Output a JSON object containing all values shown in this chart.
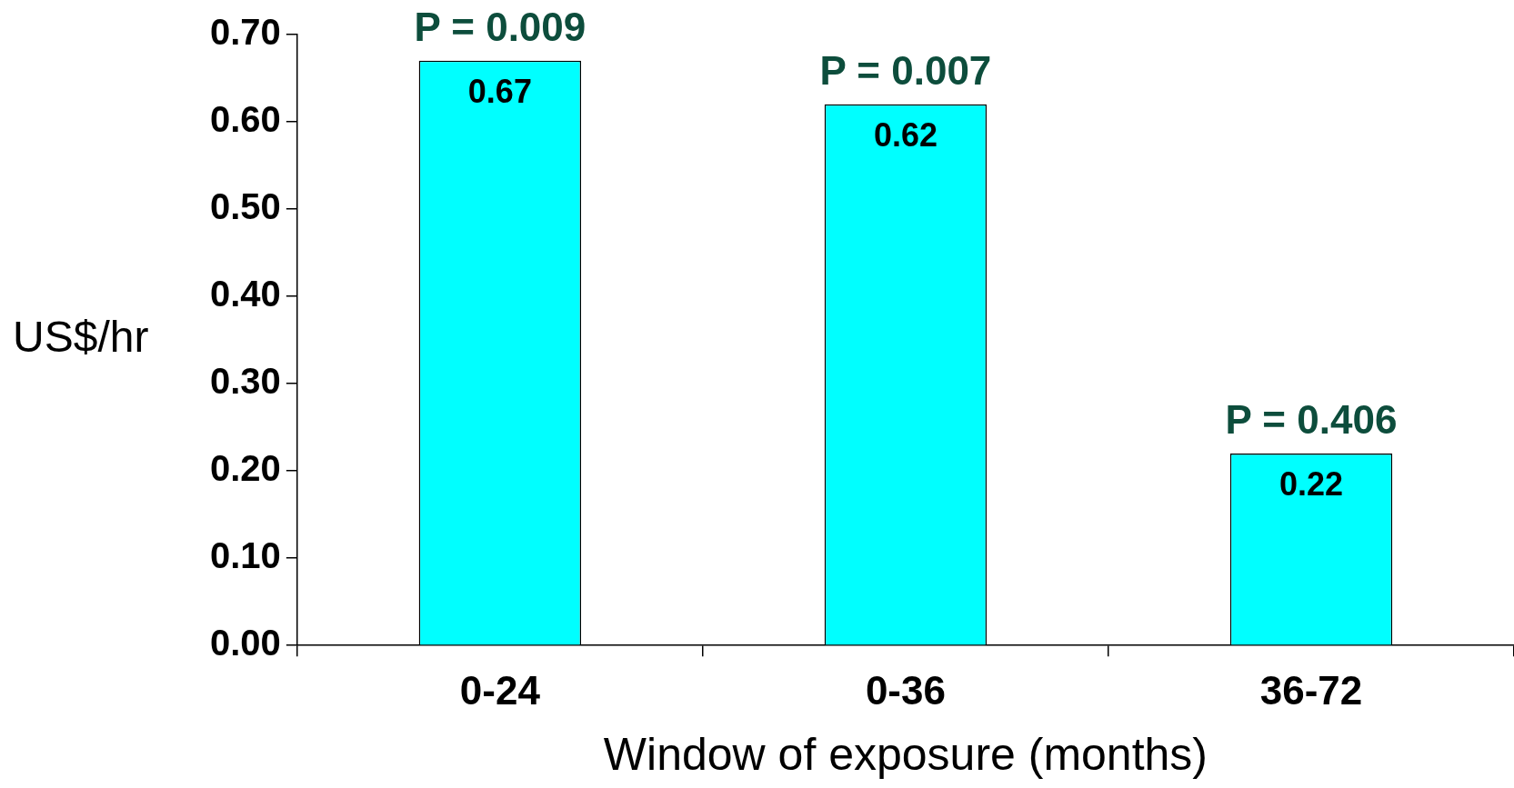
{
  "chart_data": {
    "type": "bar",
    "categories": [
      "0-24",
      "0-36",
      "36-72"
    ],
    "values": [
      0.67,
      0.62,
      0.22
    ],
    "color": "#00ffff",
    "xlabel": "Window of exposure (months)",
    "ylabel": "US$/hr",
    "ylim": [
      0,
      0.7
    ],
    "yticks": [
      {
        "value": 0,
        "label": "0.00"
      },
      {
        "value": 0.1,
        "label": "0.10"
      },
      {
        "value": 0.2,
        "label": "0.20"
      },
      {
        "value": 0.3,
        "label": "0.30"
      },
      {
        "value": 0.4,
        "label": "0.40"
      },
      {
        "value": 0.5,
        "label": "0.50"
      },
      {
        "value": 0.6,
        "label": "0.60"
      },
      {
        "value": 0.7,
        "label": "0.70"
      }
    ],
    "data_labels": true,
    "annotations": [
      {
        "text": "P = 0.009",
        "x": "0-24",
        "y": 0.67
      },
      {
        "text": "P = 0.007",
        "x": "0-36",
        "y": 0.62
      },
      {
        "text": "P = 0.406",
        "x": "36-72",
        "y": 0.22
      }
    ],
    "grid": false,
    "legend": false
  }
}
